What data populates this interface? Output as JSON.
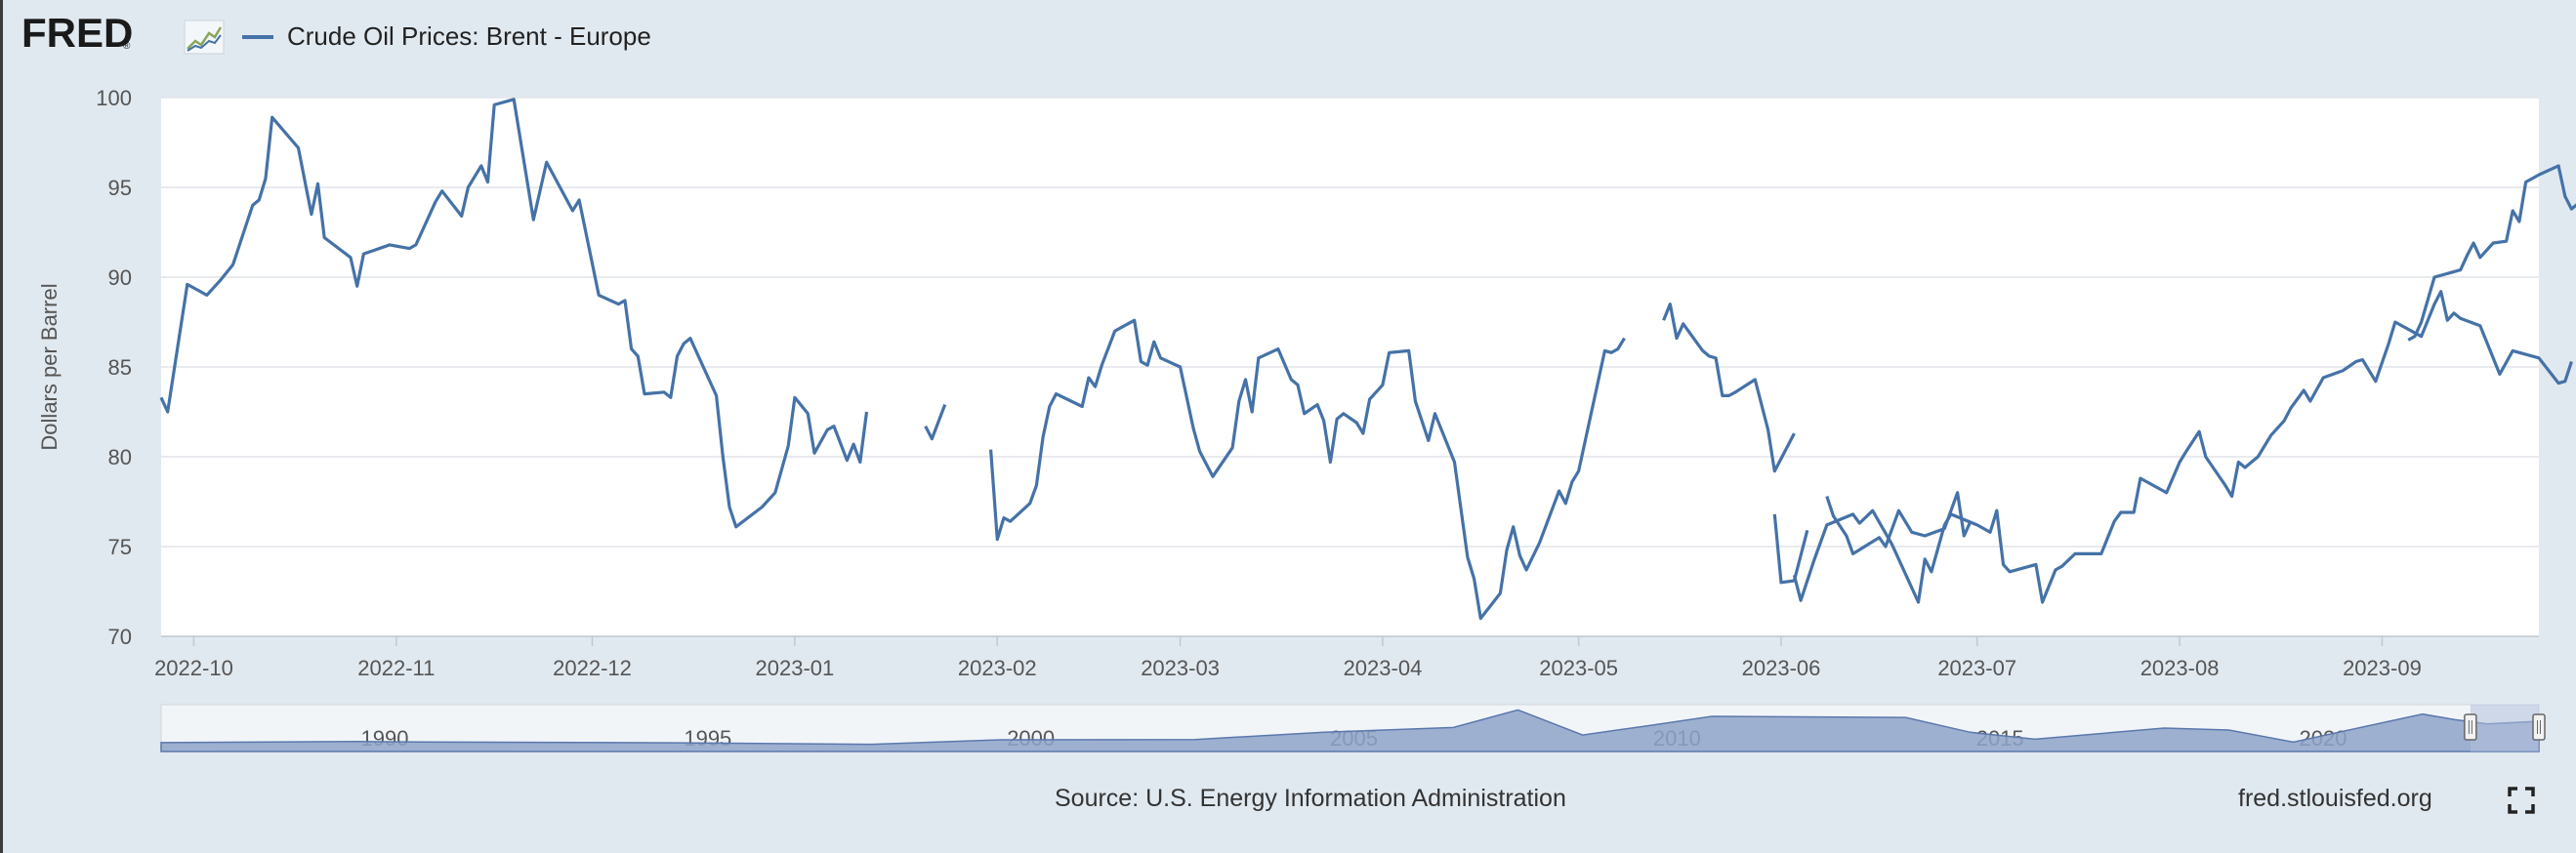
{
  "header": {
    "logo_text": "FRED",
    "logo_mark": "®"
  },
  "legend": {
    "label": "Crude Oil Prices: Brent - Europe",
    "color": "#4572a7"
  },
  "footer": {
    "source": "Source: U.S. Energy Information Administration",
    "site": "fred.stlouisfed.org"
  },
  "icons": {
    "fullscreen": "fullscreen-icon",
    "logo_graph": "graph-icon"
  },
  "colors": {
    "background": "#e1e9f0",
    "plot_bg": "#ffffff",
    "line": "#4572a7",
    "navigator_fill": "#8fa3c9",
    "navigator_mask": "#b0bfdb"
  },
  "chart_data": {
    "type": "line",
    "ylabel": "Dollars per Barrel",
    "ylim": [
      70,
      100
    ],
    "yticks": [
      70,
      75,
      80,
      85,
      90,
      95,
      100
    ],
    "xlim": [
      "2022-09-26",
      "2023-09-25"
    ],
    "xticks": [
      "2022-10",
      "2022-11",
      "2022-12",
      "2023-01",
      "2023-02",
      "2023-03",
      "2023-04",
      "2023-05",
      "2023-06",
      "2023-07",
      "2023-08",
      "2023-09"
    ],
    "grid": true,
    "legend_position": "top-left",
    "series": [
      {
        "name": "Crude Oil Prices: Brent - Europe",
        "points": [
          [
            "2022-09-26",
            83.3
          ],
          [
            "2022-09-27",
            82.5
          ],
          [
            "2022-09-30",
            89.6
          ],
          [
            "2022-10-03",
            89.0
          ],
          [
            "2022-10-05",
            89.8
          ],
          [
            "2022-10-07",
            90.7
          ],
          [
            "2022-10-10",
            94.0
          ],
          [
            "2022-10-11",
            94.3
          ],
          [
            "2022-10-12",
            95.5
          ],
          [
            "2022-10-13",
            98.9
          ],
          [
            "2022-10-17",
            97.2
          ],
          [
            "2022-10-19",
            93.5
          ],
          [
            "2022-10-20",
            95.2
          ],
          [
            "2022-10-21",
            92.2
          ],
          [
            "2022-10-25",
            91.1
          ],
          [
            "2022-10-26",
            89.5
          ],
          [
            "2022-10-27",
            91.3
          ],
          [
            "2022-10-31",
            91.8
          ],
          [
            "2022-11-03",
            91.6
          ],
          [
            "2022-11-04",
            91.8
          ],
          [
            "2022-11-07",
            94.2
          ],
          [
            "2022-11-08",
            94.8
          ],
          [
            "2022-11-11",
            93.4
          ],
          [
            "2022-11-12",
            95.0
          ],
          [
            "2022-11-14",
            96.2
          ],
          [
            "2022-11-15",
            95.3
          ],
          [
            "2022-11-16",
            99.6
          ],
          [
            "2022-11-19",
            99.9
          ],
          [
            "2022-11-22",
            93.2
          ],
          [
            "2022-11-24",
            96.4
          ],
          [
            "2022-11-28",
            93.7
          ],
          [
            "2022-11-29",
            94.3
          ],
          [
            "2022-12-02",
            89.0
          ],
          [
            "2022-12-05",
            88.5
          ],
          [
            "2022-12-06",
            88.7
          ],
          [
            "2022-12-07",
            86.0
          ],
          [
            "2022-12-08",
            85.6
          ],
          [
            "2022-12-09",
            83.5
          ],
          [
            "2022-12-12",
            83.6
          ],
          [
            "2022-12-13",
            83.3
          ],
          [
            "2022-12-14",
            85.6
          ],
          [
            "2022-12-15",
            86.3
          ],
          [
            "2022-12-16",
            86.6
          ],
          [
            "2022-12-20",
            83.4
          ],
          [
            "2022-12-21",
            80.0
          ],
          [
            "2022-12-22",
            77.2
          ],
          [
            "2022-12-23",
            76.1
          ],
          [
            "2022-12-27",
            77.2
          ],
          [
            "2022-12-29",
            78.0
          ],
          [
            "2022-12-31",
            80.6
          ],
          [
            "2023-01-01",
            83.3
          ],
          [
            "2023-01-03",
            82.4
          ],
          [
            "2023-01-04",
            80.2
          ],
          [
            "2023-01-06",
            81.5
          ],
          [
            "2023-01-07",
            81.7
          ],
          [
            "2023-01-09",
            79.8
          ],
          [
            "2023-01-10",
            80.7
          ],
          [
            "2023-01-11",
            79.7
          ],
          [
            "2023-01-12",
            82.5
          ],
          null,
          [
            "2023-01-21",
            81.7
          ],
          [
            "2023-01-22",
            81.0
          ],
          [
            "2023-01-24",
            82.9
          ],
          null,
          [
            "2023-01-31",
            80.4
          ],
          [
            "2023-02-01",
            75.4
          ],
          [
            "2023-02-02",
            76.6
          ],
          [
            "2023-02-03",
            76.4
          ],
          [
            "2023-02-06",
            77.4
          ],
          [
            "2023-02-07",
            78.4
          ],
          [
            "2023-02-08",
            81.1
          ],
          [
            "2023-02-09",
            82.8
          ],
          [
            "2023-02-10",
            83.5
          ],
          [
            "2023-02-14",
            82.8
          ],
          [
            "2023-02-15",
            84.4
          ],
          [
            "2023-02-16",
            83.9
          ],
          [
            "2023-02-17",
            85.1
          ],
          [
            "2023-02-19",
            87.0
          ],
          [
            "2023-02-22",
            87.6
          ],
          [
            "2023-02-23",
            85.3
          ],
          [
            "2023-02-24",
            85.1
          ],
          [
            "2023-02-25",
            86.4
          ],
          [
            "2023-02-26",
            85.5
          ],
          [
            "2023-03-01",
            85.0
          ],
          [
            "2023-03-03",
            81.6
          ],
          [
            "2023-03-04",
            80.3
          ],
          [
            "2023-03-06",
            78.9
          ],
          [
            "2023-03-09",
            80.5
          ],
          [
            "2023-03-10",
            83.1
          ],
          [
            "2023-03-11",
            84.3
          ],
          [
            "2023-03-12",
            82.5
          ],
          [
            "2023-03-13",
            85.5
          ],
          [
            "2023-03-16",
            86.0
          ],
          [
            "2023-03-18",
            84.3
          ],
          [
            "2023-03-19",
            84.0
          ],
          [
            "2023-03-20",
            82.4
          ],
          [
            "2023-03-22",
            82.9
          ],
          [
            "2023-03-23",
            82.0
          ],
          [
            "2023-03-24",
            79.7
          ],
          [
            "2023-03-25",
            82.1
          ],
          [
            "2023-03-26",
            82.4
          ],
          [
            "2023-03-28",
            81.9
          ],
          [
            "2023-03-29",
            81.3
          ],
          [
            "2023-03-30",
            83.2
          ],
          [
            "2023-04-01",
            84.0
          ],
          [
            "2023-04-02",
            85.8
          ],
          [
            "2023-04-05",
            85.9
          ],
          [
            "2023-04-06",
            83.1
          ],
          [
            "2023-04-08",
            80.9
          ],
          [
            "2023-04-09",
            82.4
          ],
          [
            "2023-04-12",
            79.7
          ],
          [
            "2023-04-14",
            74.4
          ],
          [
            "2023-04-15",
            73.2
          ],
          [
            "2023-04-16",
            71.0
          ],
          [
            "2023-04-19",
            72.4
          ],
          [
            "2023-04-20",
            74.8
          ],
          [
            "2023-04-21",
            76.1
          ],
          [
            "2023-04-22",
            74.5
          ],
          [
            "2023-04-23",
            73.7
          ],
          [
            "2023-04-25",
            75.2
          ],
          [
            "2023-04-28",
            78.1
          ],
          [
            "2023-04-29",
            77.4
          ],
          [
            "2023-04-30",
            78.6
          ],
          [
            "2023-05-01",
            79.2
          ],
          [
            "2023-05-05",
            85.9
          ],
          [
            "2023-05-06",
            85.8
          ],
          [
            "2023-05-07",
            86.0
          ],
          [
            "2023-05-08",
            86.6
          ],
          null,
          [
            "2023-05-14",
            87.6
          ],
          [
            "2023-05-15",
            88.5
          ],
          [
            "2023-05-16",
            86.6
          ],
          [
            "2023-05-17",
            87.4
          ],
          [
            "2023-05-20",
            85.9
          ],
          [
            "2023-05-21",
            85.6
          ],
          [
            "2023-05-22",
            85.5
          ],
          [
            "2023-05-23",
            83.4
          ],
          [
            "2023-05-24",
            83.4
          ],
          [
            "2023-05-25",
            83.6
          ],
          [
            "2023-05-28",
            84.3
          ],
          [
            "2023-05-30",
            81.5
          ],
          [
            "2023-05-31",
            79.2
          ],
          [
            "2023-06-03",
            81.3
          ],
          null,
          [
            "2023-05-31",
            76.8
          ],
          [
            "2023-06-01",
            73.0
          ],
          [
            "2023-06-03",
            73.1
          ],
          [
            "2023-06-05",
            75.9
          ],
          null,
          [
            "2023-06-08",
            77.8
          ],
          [
            "2023-06-09",
            76.7
          ],
          [
            "2023-06-11",
            75.6
          ],
          [
            "2023-06-12",
            74.6
          ],
          [
            "2023-06-16",
            75.5
          ],
          [
            "2023-06-17",
            75.0
          ],
          [
            "2023-06-19",
            77.0
          ],
          [
            "2023-06-21",
            75.8
          ],
          [
            "2023-06-23",
            75.6
          ],
          [
            "2023-06-26",
            76.0
          ],
          [
            "2023-06-28",
            78.0
          ],
          [
            "2023-06-29",
            75.6
          ],
          [
            "2023-06-30",
            76.4
          ],
          null,
          [
            "2023-06-03",
            73.4
          ],
          [
            "2023-06-04",
            72.0
          ],
          [
            "2023-06-06",
            74.2
          ],
          [
            "2023-06-08",
            76.2
          ],
          [
            "2023-06-12",
            76.8
          ],
          [
            "2023-06-13",
            76.3
          ],
          [
            "2023-06-15",
            77.0
          ],
          [
            "2023-06-18",
            75.1
          ],
          [
            "2023-06-22",
            71.9
          ],
          [
            "2023-06-23",
            74.3
          ],
          [
            "2023-06-24",
            73.6
          ],
          [
            "2023-06-26",
            76.2
          ],
          [
            "2023-06-27",
            76.8
          ],
          [
            "2023-07-01",
            76.2
          ],
          [
            "2023-07-03",
            75.8
          ],
          [
            "2023-07-04",
            77.0
          ],
          [
            "2023-07-05",
            74.0
          ],
          [
            "2023-07-06",
            73.6
          ],
          [
            "2023-07-10",
            74.0
          ],
          [
            "2023-07-11",
            71.9
          ],
          [
            "2023-07-13",
            73.7
          ],
          [
            "2023-07-14",
            73.9
          ],
          [
            "2023-07-16",
            74.6
          ],
          [
            "2023-07-20",
            74.6
          ],
          [
            "2023-07-22",
            76.4
          ],
          [
            "2023-07-23",
            76.9
          ],
          [
            "2023-07-25",
            76.9
          ],
          [
            "2023-07-26",
            78.8
          ],
          [
            "2023-07-29",
            78.2
          ],
          [
            "2023-07-30",
            78.0
          ],
          [
            "2023-08-01",
            79.7
          ],
          [
            "2023-08-02",
            80.3
          ],
          [
            "2023-08-04",
            81.4
          ],
          [
            "2023-08-05",
            80.0
          ],
          [
            "2023-08-08",
            78.4
          ],
          [
            "2023-08-09",
            77.8
          ],
          [
            "2023-08-10",
            79.7
          ],
          [
            "2023-08-11",
            79.4
          ],
          [
            "2023-08-13",
            80.0
          ],
          [
            "2023-08-15",
            81.2
          ],
          [
            "2023-08-17",
            82.0
          ],
          [
            "2023-08-18",
            82.7
          ],
          [
            "2023-08-20",
            83.7
          ],
          [
            "2023-08-21",
            83.1
          ],
          [
            "2023-08-23",
            84.4
          ],
          [
            "2023-08-26",
            84.8
          ],
          [
            "2023-08-28",
            85.3
          ],
          [
            "2023-08-29",
            85.4
          ],
          [
            "2023-08-31",
            84.2
          ],
          [
            "2023-09-02",
            86.3
          ],
          [
            "2023-09-03",
            87.5
          ],
          [
            "2023-09-07",
            86.7
          ],
          [
            "2023-09-09",
            88.5
          ],
          [
            "2023-09-10",
            89.2
          ],
          [
            "2023-09-11",
            87.6
          ],
          [
            "2023-09-12",
            88.0
          ],
          [
            "2023-09-13",
            87.7
          ],
          [
            "2023-09-16",
            87.3
          ],
          [
            "2023-09-19",
            84.6
          ],
          [
            "2023-09-21",
            85.9
          ],
          [
            "2023-09-25",
            85.5
          ],
          [
            "2023-09-28",
            84.1
          ],
          [
            "2023-09-29",
            84.2
          ],
          [
            "2023-09-30",
            85.3
          ],
          null,
          [
            "2023-09-05",
            86.5
          ],
          [
            "2023-09-06",
            86.7
          ],
          [
            "2023-09-07",
            87.5
          ],
          [
            "2023-09-09",
            90.0
          ],
          [
            "2023-09-13",
            90.4
          ],
          [
            "2023-09-14",
            91.2
          ],
          [
            "2023-09-15",
            91.9
          ],
          [
            "2023-09-16",
            91.1
          ],
          [
            "2023-09-18",
            91.9
          ],
          [
            "2023-09-20",
            92.0
          ],
          [
            "2023-09-21",
            93.7
          ],
          [
            "2023-09-22",
            93.1
          ],
          [
            "2023-09-23",
            95.3
          ],
          [
            "2023-09-25",
            95.7
          ],
          [
            "2023-09-28",
            96.2
          ],
          [
            "2023-09-29",
            94.5
          ],
          [
            "2023-09-30",
            93.8
          ],
          [
            "2023-10-01",
            94.1
          ],
          [
            "2023-10-03",
            94.1
          ]
        ]
      }
    ],
    "navigator": {
      "xticks": [
        "1990",
        "1995",
        "2000",
        "2005",
        "2010",
        "2015",
        "2020"
      ]
    }
  }
}
